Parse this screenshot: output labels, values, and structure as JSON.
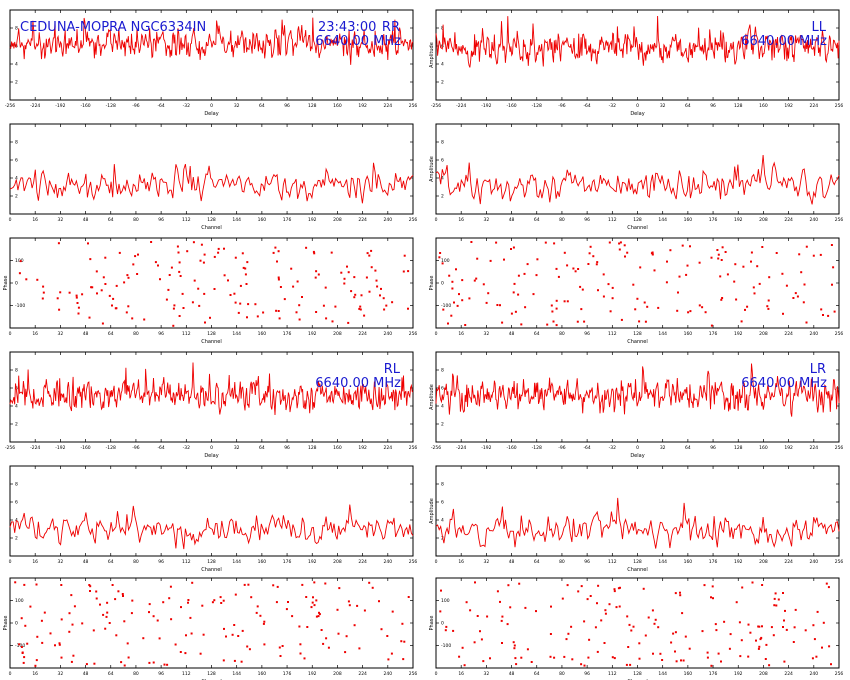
{
  "header": {
    "title_left": "CEDUNA-MOPRA NGC6334IN",
    "time": "23:43:00",
    "frequency": "6640.00 MHz"
  },
  "colors": {
    "trace": "#ee0000",
    "annotation": "#1a1ad0",
    "axes": "#000000"
  },
  "chart_data": [
    {
      "id": "rr-delay",
      "type": "line",
      "pol_label": "RR",
      "freq_label": "6640.00 MHz",
      "xlabel": "Delay",
      "ylabel": "",
      "xlim": [
        -256,
        256
      ],
      "ylim": [
        0,
        10
      ],
      "npoints": 512,
      "mean": 6.2,
      "noise": 1.4,
      "seed": 11,
      "grid": false,
      "xticks": [
        "-256",
        "-224",
        "-192",
        "-160",
        "-128",
        "-96",
        "-64",
        "-32",
        "0",
        "32",
        "64",
        "96",
        "128",
        "160",
        "192",
        "224",
        "256"
      ],
      "yticks": [
        "2",
        "4",
        "6",
        "8"
      ]
    },
    {
      "id": "ll-delay",
      "type": "line",
      "pol_label": "LL",
      "freq_label": "6640.00 MHz",
      "xlabel": "Delay",
      "ylabel": "Amplitude",
      "xlim": [
        -256,
        256
      ],
      "ylim": [
        0,
        10
      ],
      "npoints": 512,
      "mean": 5.8,
      "noise": 1.6,
      "seed": 23,
      "grid": false,
      "xticks": [
        "-256",
        "-224",
        "-192",
        "-160",
        "-128",
        "-96",
        "-64",
        "-32",
        "0",
        "32",
        "64",
        "96",
        "128",
        "160",
        "192",
        "224",
        "256"
      ],
      "yticks": [
        "2",
        "4",
        "6",
        "8"
      ]
    },
    {
      "id": "rr-channel",
      "type": "line",
      "pol_label": "",
      "freq_label": "",
      "xlabel": "Channel",
      "ylabel": "",
      "xlim": [
        0,
        256
      ],
      "ylim": [
        0,
        10
      ],
      "npoints": 256,
      "mean": 3.2,
      "noise": 1.5,
      "seed": 31,
      "grid": false,
      "xticks": [
        "0",
        "16",
        "32",
        "48",
        "64",
        "80",
        "96",
        "112",
        "128",
        "144",
        "160",
        "176",
        "192",
        "208",
        "224",
        "240",
        "256"
      ],
      "yticks": [
        "2",
        "4",
        "6",
        "8"
      ]
    },
    {
      "id": "ll-channel",
      "type": "line",
      "pol_label": "",
      "freq_label": "",
      "xlabel": "Channel",
      "ylabel": "Amplitude",
      "xlim": [
        0,
        256
      ],
      "ylim": [
        0,
        10
      ],
      "npoints": 256,
      "mean": 3.3,
      "noise": 1.5,
      "seed": 37,
      "grid": false,
      "xticks": [
        "0",
        "16",
        "32",
        "48",
        "64",
        "80",
        "96",
        "112",
        "128",
        "144",
        "160",
        "176",
        "192",
        "208",
        "224",
        "240",
        "256"
      ],
      "yticks": [
        "2",
        "4",
        "6",
        "8"
      ]
    },
    {
      "id": "rr-phase",
      "type": "scatter",
      "pol_label": "",
      "freq_label": "",
      "xlabel": "Channel",
      "ylabel": "Phase",
      "xlim": [
        0,
        256
      ],
      "ylim": [
        -180,
        180
      ],
      "npoints": 170,
      "seed": 41,
      "grid": false,
      "xticks": [
        "0",
        "16",
        "32",
        "48",
        "64",
        "80",
        "96",
        "112",
        "128",
        "144",
        "160",
        "176",
        "192",
        "208",
        "224",
        "240",
        "256"
      ],
      "yticks": [
        "-100",
        "0",
        "100"
      ]
    },
    {
      "id": "ll-phase",
      "type": "scatter",
      "pol_label": "",
      "freq_label": "",
      "xlabel": "Channel",
      "ylabel": "Phase",
      "xlim": [
        0,
        256
      ],
      "ylim": [
        -180,
        180
      ],
      "npoints": 170,
      "seed": 43,
      "grid": false,
      "xticks": [
        "0",
        "16",
        "32",
        "48",
        "64",
        "80",
        "96",
        "112",
        "128",
        "144",
        "160",
        "176",
        "192",
        "208",
        "224",
        "240",
        "256"
      ],
      "yticks": [
        "-100",
        "0",
        "100"
      ]
    },
    {
      "id": "rl-delay",
      "type": "line",
      "pol_label": "RL",
      "freq_label": "6640.00 MHz",
      "xlabel": "Delay",
      "ylabel": "",
      "xlim": [
        -256,
        256
      ],
      "ylim": [
        0,
        10
      ],
      "npoints": 512,
      "mean": 5.2,
      "noise": 1.5,
      "seed": 53,
      "grid": false,
      "xticks": [
        "-256",
        "-224",
        "-192",
        "-160",
        "-128",
        "-96",
        "-64",
        "-32",
        "0",
        "32",
        "64",
        "96",
        "128",
        "160",
        "192",
        "224",
        "256"
      ],
      "yticks": [
        "2",
        "4",
        "6",
        "8"
      ]
    },
    {
      "id": "lr-delay",
      "type": "line",
      "pol_label": "LR",
      "freq_label": "6640.00 MHz",
      "xlabel": "Delay",
      "ylabel": "Amplitude",
      "xlim": [
        -256,
        256
      ],
      "ylim": [
        0,
        10
      ],
      "npoints": 512,
      "mean": 5.2,
      "noise": 1.6,
      "seed": 59,
      "grid": false,
      "xticks": [
        "-256",
        "-224",
        "-192",
        "-160",
        "-128",
        "-96",
        "-64",
        "-32",
        "0",
        "32",
        "64",
        "96",
        "128",
        "160",
        "192",
        "224",
        "256"
      ],
      "yticks": [
        "2",
        "4",
        "6",
        "8"
      ]
    },
    {
      "id": "rl-channel",
      "type": "line",
      "pol_label": "",
      "freq_label": "",
      "xlabel": "Channel",
      "ylabel": "",
      "xlim": [
        0,
        256
      ],
      "ylim": [
        0,
        10
      ],
      "npoints": 256,
      "mean": 3.0,
      "noise": 1.4,
      "seed": 61,
      "grid": false,
      "xticks": [
        "0",
        "16",
        "32",
        "48",
        "64",
        "80",
        "96",
        "112",
        "128",
        "144",
        "160",
        "176",
        "192",
        "208",
        "224",
        "240",
        "256"
      ],
      "yticks": [
        "2",
        "4",
        "6",
        "8"
      ]
    },
    {
      "id": "lr-channel",
      "type": "line",
      "pol_label": "",
      "freq_label": "",
      "xlabel": "Channel",
      "ylabel": "Amplitude",
      "xlim": [
        0,
        256
      ],
      "ylim": [
        0,
        10
      ],
      "npoints": 256,
      "mean": 3.0,
      "noise": 1.4,
      "seed": 67,
      "grid": false,
      "xticks": [
        "0",
        "16",
        "32",
        "48",
        "64",
        "80",
        "96",
        "112",
        "128",
        "144",
        "160",
        "176",
        "192",
        "208",
        "224",
        "240",
        "256"
      ],
      "yticks": [
        "2",
        "4",
        "6",
        "8"
      ]
    },
    {
      "id": "rl-phase",
      "type": "scatter",
      "pol_label": "",
      "freq_label": "",
      "xlabel": "Channel",
      "ylabel": "Phase",
      "xlim": [
        0,
        256
      ],
      "ylim": [
        -180,
        180
      ],
      "npoints": 170,
      "seed": 71,
      "grid": false,
      "xticks": [
        "0",
        "16",
        "32",
        "48",
        "64",
        "80",
        "96",
        "112",
        "128",
        "144",
        "160",
        "176",
        "192",
        "208",
        "224",
        "240",
        "256"
      ],
      "yticks": [
        "-100",
        "0",
        "100"
      ]
    },
    {
      "id": "lr-phase",
      "type": "scatter",
      "pol_label": "",
      "freq_label": "",
      "xlabel": "Channel",
      "ylabel": "Phase",
      "xlim": [
        0,
        256
      ],
      "ylim": [
        -180,
        180
      ],
      "npoints": 170,
      "seed": 73,
      "grid": false,
      "xticks": [
        "0",
        "16",
        "32",
        "48",
        "64",
        "80",
        "96",
        "112",
        "128",
        "144",
        "160",
        "176",
        "192",
        "208",
        "224",
        "240",
        "256"
      ],
      "yticks": [
        "-100",
        "0",
        "100"
      ]
    }
  ]
}
